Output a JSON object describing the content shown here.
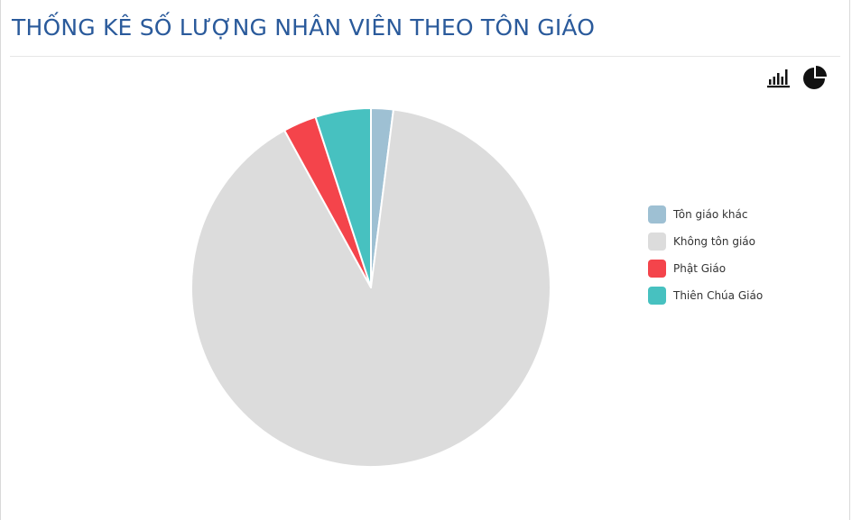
{
  "header": {
    "title": "THỐNG KÊ SỐ LƯỢNG NHÂN VIÊN THEO TÔN GIÁO"
  },
  "toolbar": {
    "bar_icon": "bar-chart-icon",
    "pie_icon": "pie-chart-icon"
  },
  "chart_data": {
    "type": "pie",
    "categories": [
      "Tôn giáo khác",
      "Không tôn giáo",
      "Phật Giáo",
      "Thiên Chúa Giáo"
    ],
    "values": [
      2,
      90,
      3,
      5
    ],
    "colors": [
      "#9ec0d3",
      "#dcdcdc",
      "#f4444b",
      "#47c1c0"
    ],
    "title": "THỐNG KÊ SỐ LƯỢNG NHÂN VIÊN THEO TÔN GIÁO",
    "legend": "right"
  }
}
